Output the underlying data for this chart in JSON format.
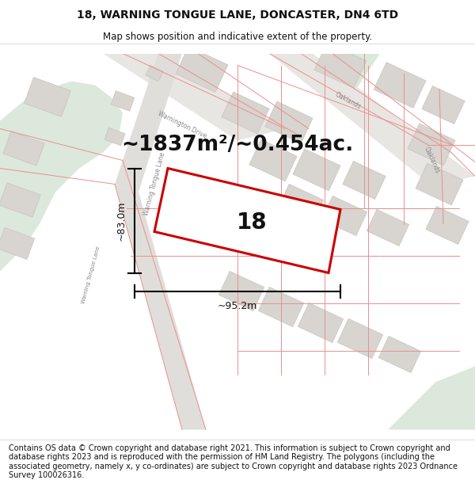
{
  "title": "18, WARNING TONGUE LANE, DONCASTER, DN4 6TD",
  "subtitle": "Map shows position and indicative extent of the property.",
  "area_text": "~1837m²/~0.454ac.",
  "label_18": "18",
  "dim_vertical": "~83.0m",
  "dim_horizontal": "~95.2m",
  "footer": "Contains OS data © Crown copyright and database right 2021. This information is subject to Crown copyright and database rights 2023 and is reproduced with the permission of HM Land Registry. The polygons (including the associated geometry, namely x, y co-ordinates) are subject to Crown copyright and database rights 2023 Ordnance Survey 100026316.",
  "map_bg": "#f7f7f5",
  "green_color": "#dce8dc",
  "building_color": "#d8d4d0",
  "building_edge": "#c8c4c0",
  "road_color": "#e8e8e6",
  "highlight_color": "#cc0000",
  "red_line_color": "#e89090",
  "title_fontsize": 10,
  "subtitle_fontsize": 8.5,
  "area_fontsize": 19,
  "label_fontsize": 20,
  "dim_fontsize": 9,
  "footer_fontsize": 7,
  "road_label_color": "#888888",
  "road_label_size": 5.5
}
